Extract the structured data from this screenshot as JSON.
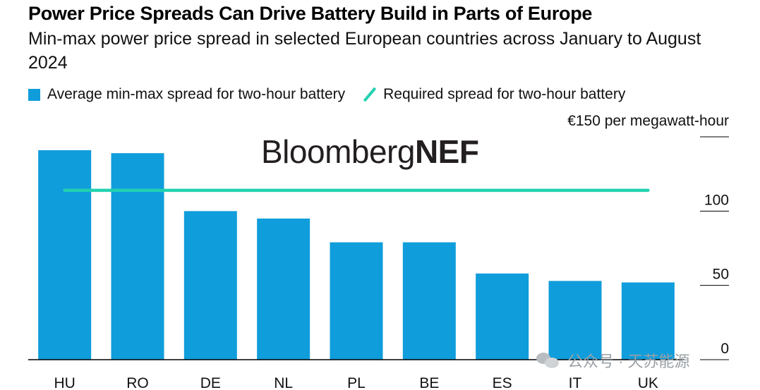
{
  "header": {
    "title": "Power Price Spreads Can Drive Battery Build in Parts of Europe",
    "subtitle": "Min-max power price spread in selected European countries across January to August 2024"
  },
  "legend": {
    "bar_label": "Average min-max spread for two-hour battery",
    "line_label": "Required spread for two-hour battery"
  },
  "logo": {
    "text_light": "Bloomberg",
    "text_bold": "NEF"
  },
  "watermark": {
    "text": "公众号 · 天苏能源"
  },
  "colors": {
    "bar": "#109ddb",
    "line": "#22d1b0"
  },
  "chart_data": {
    "type": "bar",
    "title": "Power Price Spreads Can Drive Battery Build in Parts of Europe",
    "subtitle": "Min-max power price spread in selected European countries across January to August 2024",
    "categories": [
      "HU",
      "RO",
      "DE",
      "NL",
      "PL",
      "BE",
      "ES",
      "IT",
      "UK"
    ],
    "series": [
      {
        "name": "Average min-max spread for two-hour battery",
        "values": [
          141,
          139,
          100,
          95,
          79,
          79,
          58,
          53,
          52
        ]
      }
    ],
    "reference_line": {
      "name": "Required spread for two-hour battery",
      "value": 114
    },
    "ylim": [
      0,
      150
    ],
    "yticks": [
      0,
      50,
      100,
      150
    ],
    "ytick_labels": [
      "0",
      "50",
      "100",
      "€150 per megawatt-hour"
    ],
    "unit_label": "€150 per megawatt-hour",
    "grid": false,
    "legend_position": "top-left"
  }
}
